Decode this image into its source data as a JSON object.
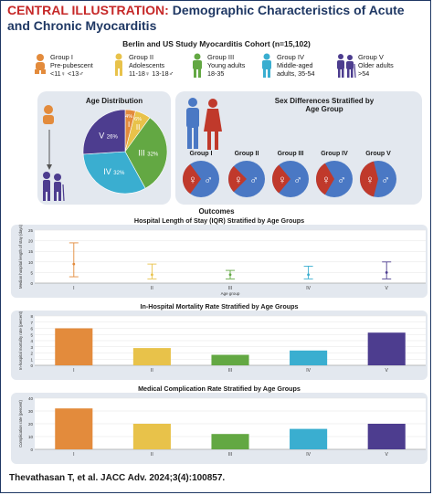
{
  "header": {
    "label": "CENTRAL ILLUSTRATION:",
    "title": "Demographic Characteristics of Acute and Chronic Myocarditis"
  },
  "cohort": "Berlin and US Study Myocarditis Cohort (n=15,102)",
  "age_groups": [
    {
      "name": "Group I",
      "line2": "Pre-pubescent",
      "line3": "<11♀ <13♂",
      "color": "#e38b3c"
    },
    {
      "name": "Group II",
      "line2": "Adolescents",
      "line3": "11-18♀ 13-18♂",
      "color": "#e8c24a"
    },
    {
      "name": "Group III",
      "line2": "Young adults",
      "line3": "18-35",
      "color": "#63a843"
    },
    {
      "name": "Group IV",
      "line2": "Middle-aged",
      "line3": "adults, 35-54",
      "color": "#3aaed0"
    },
    {
      "name": "Group V",
      "line2": "Older adults",
      "line3": ">54",
      "color": "#4d3d8f"
    }
  ],
  "age_distribution": {
    "title": "Age Distribution",
    "slices": [
      {
        "label": "I",
        "pct_label": "4%",
        "value": 4,
        "color": "#e38b3c"
      },
      {
        "label": "II",
        "pct_label": "6%",
        "value": 6,
        "color": "#e8c24a"
      },
      {
        "label": "III",
        "pct_label": "32%",
        "value": 32,
        "color": "#63a843"
      },
      {
        "label": "IV",
        "pct_label": "32%",
        "value": 32,
        "color": "#3aaed0"
      },
      {
        "label": "V",
        "pct_label": "26%",
        "value": 26,
        "color": "#4d3d8f"
      }
    ]
  },
  "sex_differences": {
    "title_line1": "Sex Differences Stratified by",
    "title_line2": "Age Group",
    "female_color": "#c0392b",
    "male_color": "#4a78c4",
    "groups": [
      {
        "label": "Group I",
        "female_share": 0.3
      },
      {
        "label": "Group II",
        "female_share": 0.25
      },
      {
        "label": "Group III",
        "female_share": 0.28
      },
      {
        "label": "Group IV",
        "female_share": 0.33
      },
      {
        "label": "Group V",
        "female_share": 0.42
      }
    ]
  },
  "outcomes_title": "Outcomes",
  "chart_data": [
    {
      "type": "errorbar",
      "title": "Hospital Length of Stay (IQR) Stratified by Age Groups",
      "xlabel": "Age group",
      "ylabel": "Median hospital length of stay (days)",
      "categories": [
        "I",
        "II",
        "III",
        "IV",
        "V"
      ],
      "median": [
        9,
        4,
        4,
        4,
        5
      ],
      "q1": [
        3,
        2,
        2,
        2,
        2
      ],
      "q3": [
        19,
        9,
        6,
        8,
        10
      ],
      "ylim": [
        0,
        25
      ],
      "yticks": [
        0,
        5,
        10,
        15,
        20,
        25
      ],
      "colors": [
        "#e38b3c",
        "#e8c24a",
        "#63a843",
        "#3aaed0",
        "#4d3d8f"
      ]
    },
    {
      "type": "bar",
      "title": "In-Hospital Mortality Rate Stratified by Age Groups",
      "xlabel": "",
      "ylabel": "In-hospital mortality rate (percent)",
      "categories": [
        "I",
        "II",
        "III",
        "IV",
        "V"
      ],
      "values": [
        6.0,
        2.8,
        1.7,
        2.4,
        5.3
      ],
      "ylim": [
        0,
        8
      ],
      "yticks": [
        0,
        1,
        2,
        3,
        4,
        5,
        6,
        7,
        8
      ],
      "colors": [
        "#e38b3c",
        "#e8c24a",
        "#63a843",
        "#3aaed0",
        "#4d3d8f"
      ]
    },
    {
      "type": "bar",
      "title": "Medical Complication Rate Stratified by Age Groups",
      "xlabel": "",
      "ylabel": "Complication rate (percent)",
      "categories": [
        "I",
        "II",
        "III",
        "IV",
        "V"
      ],
      "values": [
        32,
        20,
        12,
        16,
        20
      ],
      "ylim": [
        0,
        40
      ],
      "yticks": [
        0,
        10,
        20,
        30,
        40
      ],
      "colors": [
        "#e38b3c",
        "#e8c24a",
        "#63a843",
        "#3aaed0",
        "#4d3d8f"
      ]
    }
  ],
  "citation": "Thevathasan T, et al. JACC Adv. 2024;3(4):100857."
}
